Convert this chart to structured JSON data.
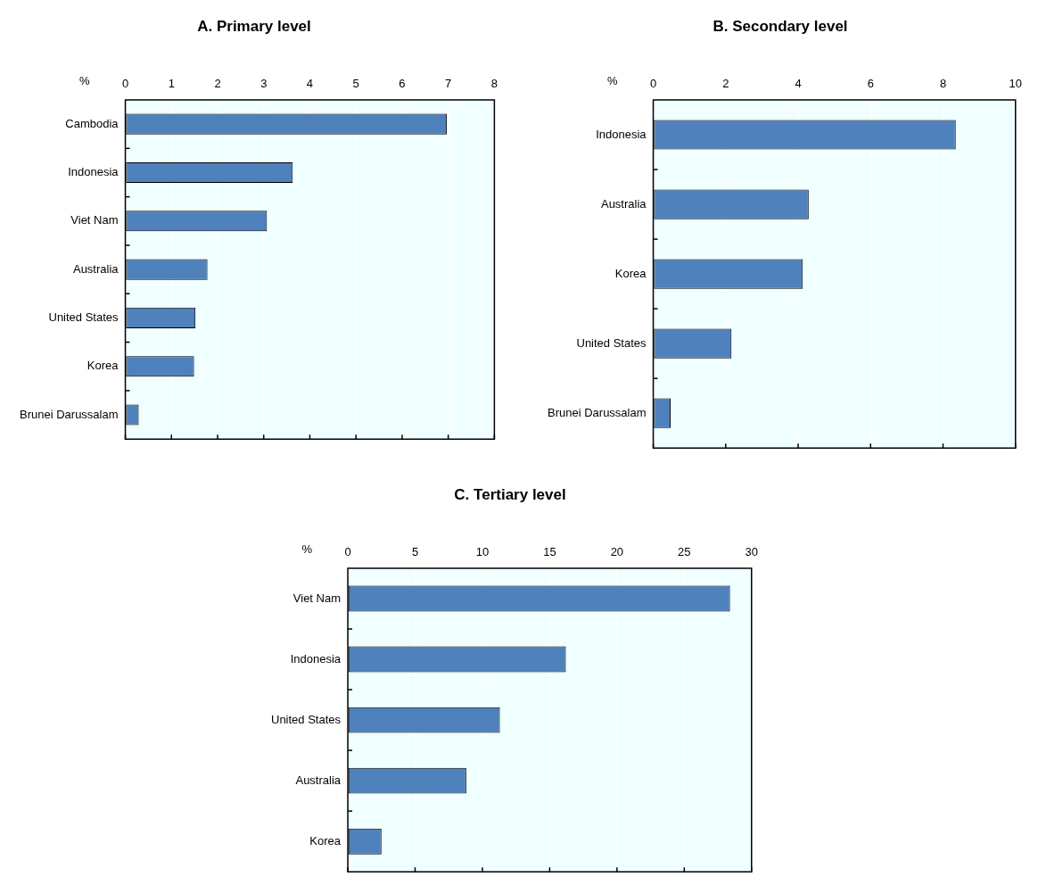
{
  "chart_data": [
    {
      "type": "bar",
      "orientation": "horizontal",
      "title": "A. Primary level",
      "xlabel": "%",
      "categories": [
        "Cambodia",
        "Indonesia",
        "Viet Nam",
        "Australia",
        "United States",
        "Korea",
        "Brunei Darussalam"
      ],
      "values": [
        6.97,
        3.63,
        3.07,
        1.78,
        1.52,
        1.49,
        0.29
      ],
      "color": "#4f81bd",
      "xlim": [
        0,
        8
      ],
      "xticks": [
        0,
        1,
        2,
        3,
        4,
        5,
        6,
        7,
        8
      ],
      "grid": "x",
      "legend": false
    },
    {
      "type": "bar",
      "orientation": "horizontal",
      "title": "B. Secondary level",
      "xlabel": "%",
      "categories": [
        "Indonesia",
        "Australia",
        "Korea",
        "United States",
        "Brunei Darussalam"
      ],
      "values": [
        8.35,
        4.29,
        4.13,
        2.16,
        0.48
      ],
      "color": "#4f81bd",
      "xlim": [
        0,
        10
      ],
      "xticks": [
        0,
        2,
        4,
        6,
        8,
        10
      ],
      "grid": "x",
      "legend": false
    },
    {
      "type": "bar",
      "orientation": "horizontal",
      "title": "C. Tertiary level",
      "xlabel": "%",
      "categories": [
        "Viet Nam",
        "Indonesia",
        "United States",
        "Australia",
        "Korea"
      ],
      "values": [
        28.4,
        16.2,
        11.3,
        8.8,
        2.5
      ],
      "color": "#4f81bd",
      "xlim": [
        0,
        30
      ],
      "xticks": [
        0,
        5,
        10,
        15,
        20,
        25,
        30
      ],
      "grid": "x",
      "legend": false
    }
  ]
}
